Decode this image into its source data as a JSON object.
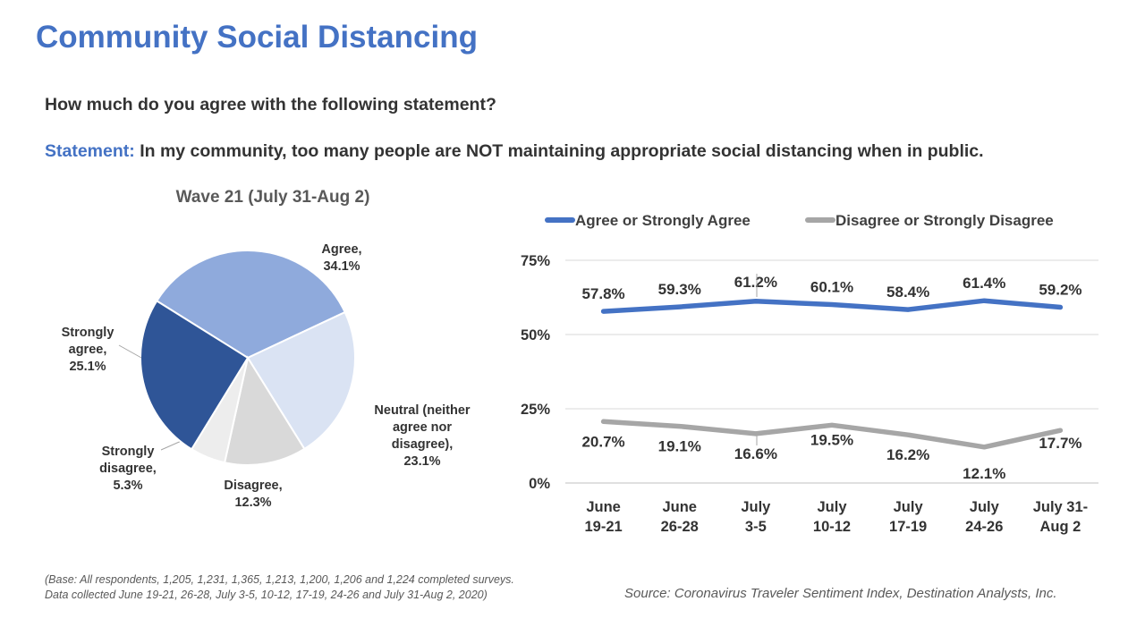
{
  "page": {
    "title": "Community Social Distancing",
    "question": "How much do you agree with the following statement?",
    "statement_label": "Statement:",
    "statement_text": "In my community, too many people are NOT maintaining appropriate social distancing when in public.",
    "footnote_line1": "(Base: All respondents, 1,205, 1,231, 1,365, 1,213, 1,200, 1,206 and 1,224 completed surveys.",
    "footnote_line2": "Data collected June 19-21, 26-28, July 3-5, 10-12, 17-19, 24-26 and July 31-Aug 2, 2020)",
    "source": "Source: Coronavirus Traveler Sentiment Index, Destination Analysts, Inc."
  },
  "chart_data": [
    {
      "type": "pie",
      "title": "Wave 21 (July 31-Aug 2)",
      "slices": [
        {
          "label": [
            "Agree,",
            "34.1%"
          ],
          "value": 34.1,
          "color": "#8FAADC"
        },
        {
          "label": [
            "Neutral (neither",
            "agree nor",
            "disagree),",
            "23.1%"
          ],
          "value": 23.1,
          "color": "#DAE3F3"
        },
        {
          "label": [
            "Disagree,",
            "12.3%"
          ],
          "value": 12.3,
          "color": "#D9D9D9"
        },
        {
          "label": [
            "Strongly",
            "disagree,",
            "5.3%"
          ],
          "value": 5.3,
          "color": "#EDEDED"
        },
        {
          "label": [
            "Strongly",
            "agree,",
            "25.1%"
          ],
          "value": 25.1,
          "color": "#2F5597"
        }
      ]
    },
    {
      "type": "line",
      "categories": [
        [
          "June",
          "19-21"
        ],
        [
          "June",
          "26-28"
        ],
        [
          "July",
          "3-5"
        ],
        [
          "July",
          "10-12"
        ],
        [
          "July",
          "17-19"
        ],
        [
          "July",
          "24-26"
        ],
        [
          "July 31-",
          "Aug 2"
        ]
      ],
      "yticks": [
        "0%",
        "25%",
        "50%",
        "75%"
      ],
      "ylim": [
        0,
        75
      ],
      "grid": true,
      "legend_position": "top",
      "series": [
        {
          "name": "Agree or Strongly Agree",
          "color": "#4472C4",
          "values": [
            57.8,
            59.3,
            61.2,
            60.1,
            58.4,
            61.4,
            59.2
          ],
          "labels": [
            "57.8%",
            "59.3%",
            "61.2%",
            "60.1%",
            "58.4%",
            "61.4%",
            "59.2%"
          ]
        },
        {
          "name": "Disagree or Strongly Disagree",
          "color": "#A6A6A6",
          "values": [
            20.7,
            19.1,
            16.6,
            19.5,
            16.2,
            12.1,
            17.7
          ],
          "labels": [
            "20.7%",
            "19.1%",
            "16.6%",
            "19.5%",
            "16.2%",
            "12.1%",
            "17.7%"
          ]
        }
      ]
    }
  ]
}
